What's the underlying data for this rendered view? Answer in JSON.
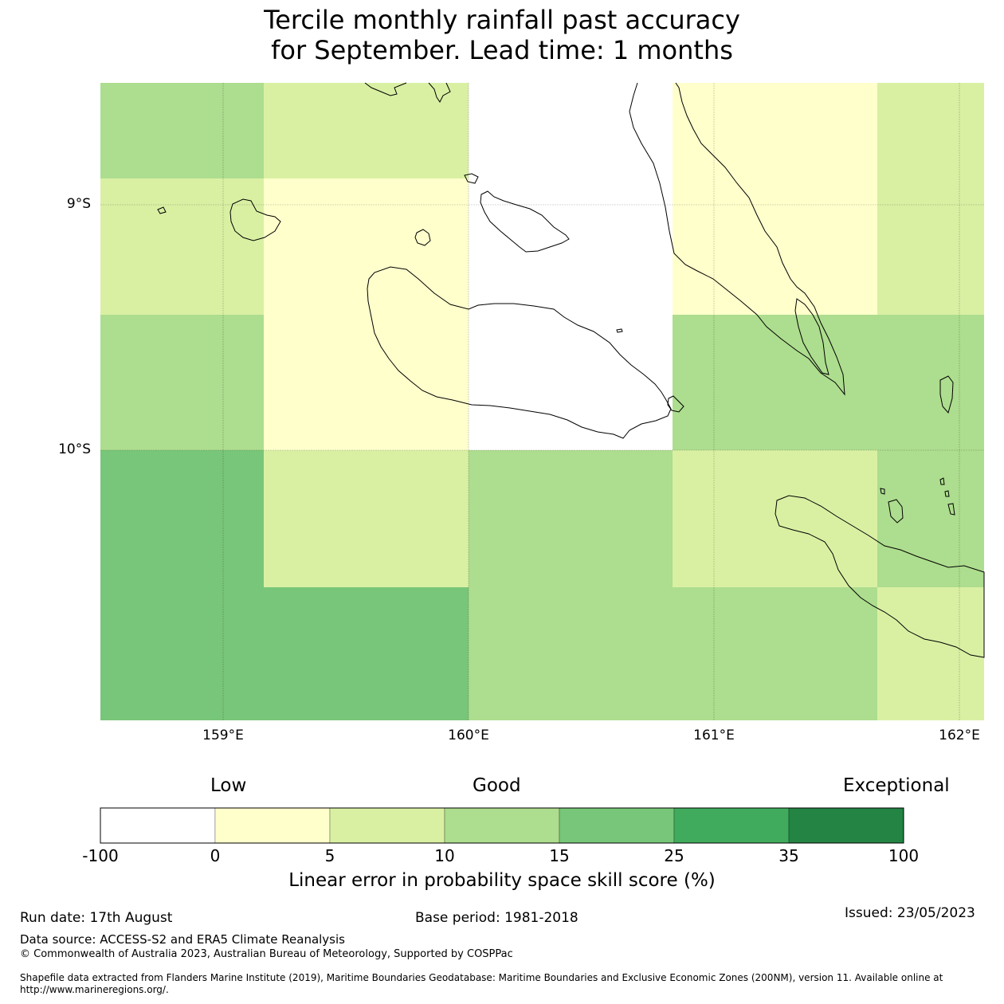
{
  "title": {
    "line1": "Tercile monthly rainfall past accuracy",
    "line2": "for September. Lead time: 1 months"
  },
  "map": {
    "lat_labels": [
      "9°S",
      "10°S"
    ],
    "lon_labels": [
      "159°E",
      "160°E",
      "161°E",
      "162°E"
    ],
    "grid_cells": [
      {
        "cat": 3
      },
      {
        "cat": 2
      },
      {
        "cat": 0
      },
      {
        "cat": 1
      },
      {
        "cat": 2
      },
      {
        "cat": 2
      },
      {
        "cat": 1
      },
      {
        "cat": 0
      },
      {
        "cat": 1
      },
      {
        "cat": 2
      },
      {
        "cat": 3
      },
      {
        "cat": 1
      },
      {
        "cat": 0
      },
      {
        "cat": 3
      },
      {
        "cat": 3
      },
      {
        "cat": 4
      },
      {
        "cat": 2
      },
      {
        "cat": 3
      },
      {
        "cat": 2
      },
      {
        "cat": 3
      },
      {
        "cat": 4
      },
      {
        "cat": 4
      },
      {
        "cat": 3
      },
      {
        "cat": 3
      },
      {
        "cat": 2
      }
    ]
  },
  "colorbar": {
    "colors": [
      "#ffffff",
      "#ffffcc",
      "#d9f0a3",
      "#addd8e",
      "#78c679",
      "#41ab5d",
      "#238443"
    ],
    "ticks": [
      "-100",
      "0",
      "5",
      "10",
      "15",
      "25",
      "35",
      "100"
    ],
    "category_labels": {
      "low": "Low",
      "good": "Good",
      "exceptional": "Exceptional"
    },
    "title": "Linear error in probability space skill score (%)"
  },
  "footer": {
    "run_date": "Run date: 17th August",
    "base_period": "Base period: 1981-2018",
    "issued": "Issued: 23/05/2023",
    "data_source": "Data source: ACCESS-S2 and ERA5 Climate Reanalysis",
    "copyright": "© Commonwealth of Australia 2023, Australian Bureau of Meteorology, Supported by COSPPac",
    "shapefile_line1": "Shapefile data extracted from Flanders Marine Institute (2019), Maritime Boundaries Geodatabase: Maritime Boundaries and Exclusive Economic Zones (200NM), version 11. Available online at",
    "shapefile_line2": "http://www.marineregions.org/."
  }
}
